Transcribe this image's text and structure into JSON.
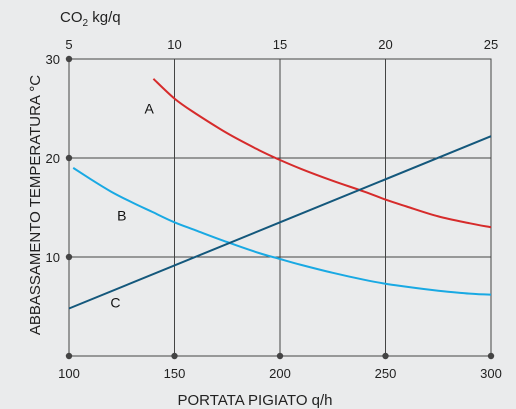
{
  "chart_data": {
    "type": "line",
    "top_axis_title": "CO2 kg/q",
    "top_axis_title_base": "CO",
    "top_axis_title_sub": "2",
    "top_axis_title_rest": " kg/q",
    "xlabel": "PORTATA PIGIATO q/h",
    "ylabel": "ABBASSAMENTO TEMPERATURA °C",
    "xlim": [
      100,
      300
    ],
    "ylim": [
      0,
      30
    ],
    "top_lim": [
      5,
      25
    ],
    "x_ticks": [
      100,
      150,
      200,
      250,
      300
    ],
    "y_ticks": [
      10,
      20,
      30
    ],
    "top_ticks": [
      5,
      10,
      15,
      20,
      25
    ],
    "grid": true,
    "series": [
      {
        "name": "A",
        "color": "#d62b2b",
        "x": [
          140,
          150,
          160,
          175,
          190,
          200,
          210,
          225,
          240,
          250,
          260,
          275,
          290,
          300
        ],
        "y": [
          28.0,
          26.0,
          24.5,
          22.5,
          20.8,
          19.8,
          18.9,
          17.7,
          16.6,
          15.8,
          15.1,
          14.1,
          13.4,
          13.0
        ]
      },
      {
        "name": "B",
        "color": "#19a9e3",
        "x": [
          102,
          110,
          120,
          130,
          140,
          150,
          160,
          175,
          190,
          200,
          210,
          225,
          240,
          250,
          260,
          275,
          290,
          300
        ],
        "y": [
          19.0,
          17.9,
          16.6,
          15.5,
          14.5,
          13.5,
          12.7,
          11.5,
          10.4,
          9.8,
          9.2,
          8.4,
          7.7,
          7.3,
          7.0,
          6.6,
          6.3,
          6.2
        ]
      },
      {
        "name": "C",
        "color": "#14587c",
        "x": [
          100,
          300
        ],
        "y": [
          4.8,
          22.2
        ]
      }
    ],
    "label_positions_data": [
      {
        "text": "A",
        "x": 138,
        "y": 25.0
      },
      {
        "text": "B",
        "x": 125,
        "y": 14.2
      },
      {
        "text": "C",
        "x": 122,
        "y": 5.4
      }
    ]
  }
}
